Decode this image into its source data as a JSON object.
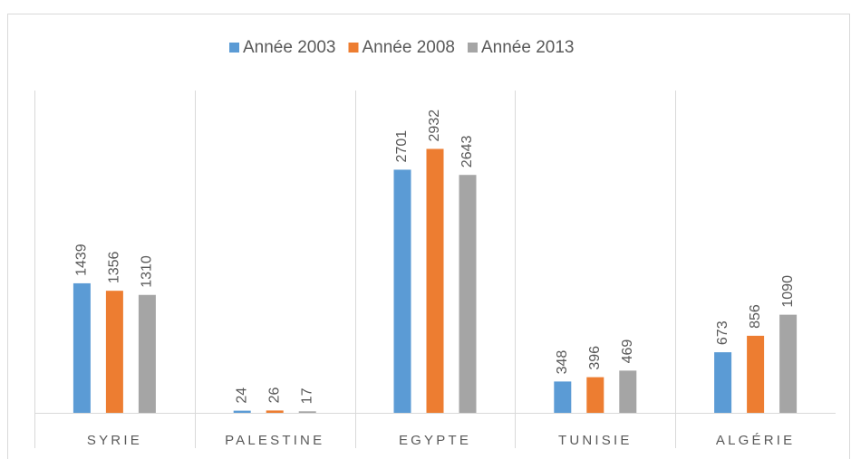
{
  "chart_data": {
    "type": "bar",
    "categories": [
      "SYRIE",
      "PALESTINE",
      "EGYPTE",
      "TUNISIE",
      "ALGÉRIE"
    ],
    "series": [
      {
        "name": "Année 2003",
        "color": "#5b9bd5",
        "values": [
          1439,
          24,
          2701,
          348,
          673
        ]
      },
      {
        "name": "Année 2008",
        "color": "#ed7d31",
        "values": [
          1356,
          26,
          2932,
          396,
          856
        ]
      },
      {
        "name": "Année 2013",
        "color": "#a5a5a5",
        "values": [
          1310,
          17,
          2643,
          469,
          1090
        ]
      }
    ],
    "ylim": [
      0,
      3500
    ],
    "legend": "top"
  }
}
